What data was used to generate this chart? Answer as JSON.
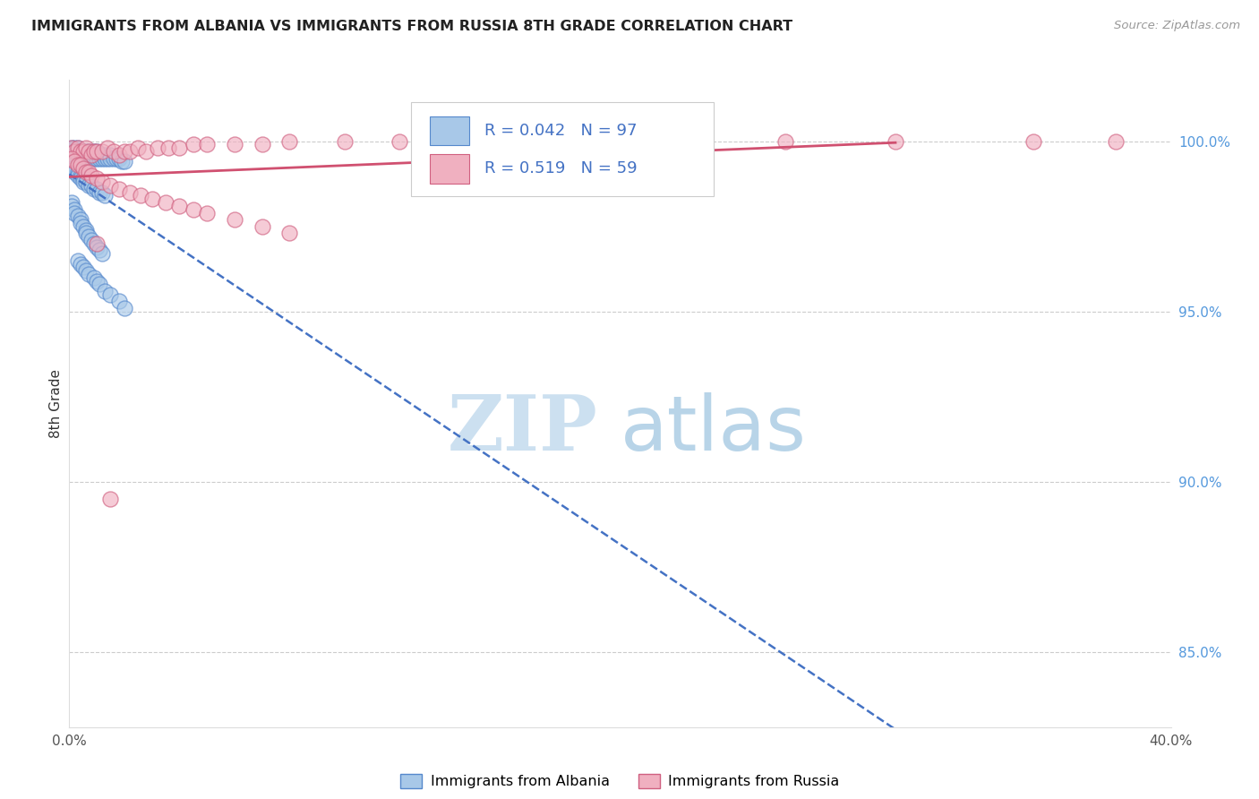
{
  "title": "IMMIGRANTS FROM ALBANIA VS IMMIGRANTS FROM RUSSIA 8TH GRADE CORRELATION CHART",
  "source": "Source: ZipAtlas.com",
  "ylabel": "8th Grade",
  "legend_albania": "Immigrants from Albania",
  "legend_russia": "Immigrants from Russia",
  "r_albania": 0.042,
  "n_albania": 97,
  "r_russia": 0.519,
  "n_russia": 59,
  "xlim": [
    0.0,
    0.4
  ],
  "ylim": [
    0.828,
    1.018
  ],
  "xtick_vals": [
    0.0,
    0.08,
    0.16,
    0.24,
    0.32,
    0.4
  ],
  "xtick_labels": [
    "0.0%",
    "",
    "",
    "",
    "",
    "40.0%"
  ],
  "ytick_vals": [
    0.85,
    0.9,
    0.95,
    1.0
  ],
  "ytick_labels": [
    "85.0%",
    "90.0%",
    "95.0%",
    "100.0%"
  ],
  "color_albania_fill": "#a8c8e8",
  "color_albania_edge": "#5588cc",
  "color_russia_fill": "#f0b0c0",
  "color_russia_edge": "#d06080",
  "color_albania_line": "#4472c4",
  "color_russia_line": "#d05070",
  "watermark_zip_color": "#cce0f0",
  "watermark_atlas_color": "#b8d4e8",
  "albania_x": [
    0.001,
    0.001,
    0.001,
    0.002,
    0.002,
    0.002,
    0.002,
    0.002,
    0.003,
    0.003,
    0.003,
    0.003,
    0.003,
    0.004,
    0.004,
    0.004,
    0.004,
    0.005,
    0.005,
    0.005,
    0.005,
    0.006,
    0.006,
    0.006,
    0.006,
    0.007,
    0.007,
    0.007,
    0.008,
    0.008,
    0.008,
    0.009,
    0.009,
    0.009,
    0.01,
    0.01,
    0.01,
    0.011,
    0.011,
    0.012,
    0.012,
    0.013,
    0.013,
    0.014,
    0.015,
    0.015,
    0.016,
    0.017,
    0.018,
    0.019,
    0.02,
    0.001,
    0.001,
    0.002,
    0.002,
    0.003,
    0.003,
    0.004,
    0.004,
    0.005,
    0.005,
    0.006,
    0.007,
    0.008,
    0.009,
    0.01,
    0.011,
    0.012,
    0.013,
    0.001,
    0.001,
    0.002,
    0.002,
    0.003,
    0.004,
    0.004,
    0.005,
    0.006,
    0.006,
    0.007,
    0.008,
    0.009,
    0.01,
    0.011,
    0.012,
    0.003,
    0.004,
    0.005,
    0.006,
    0.007,
    0.009,
    0.01,
    0.011,
    0.013,
    0.015,
    0.018,
    0.02
  ],
  "albania_y": [
    0.998,
    0.997,
    0.996,
    0.998,
    0.997,
    0.996,
    0.995,
    0.994,
    0.998,
    0.997,
    0.996,
    0.995,
    0.994,
    0.997,
    0.996,
    0.995,
    0.994,
    0.997,
    0.996,
    0.995,
    0.994,
    0.997,
    0.996,
    0.995,
    0.994,
    0.997,
    0.996,
    0.995,
    0.997,
    0.996,
    0.995,
    0.997,
    0.996,
    0.995,
    0.997,
    0.996,
    0.995,
    0.996,
    0.995,
    0.996,
    0.995,
    0.996,
    0.995,
    0.995,
    0.996,
    0.995,
    0.995,
    0.995,
    0.995,
    0.994,
    0.994,
    0.993,
    0.992,
    0.992,
    0.991,
    0.991,
    0.99,
    0.99,
    0.989,
    0.989,
    0.988,
    0.988,
    0.987,
    0.987,
    0.986,
    0.986,
    0.985,
    0.985,
    0.984,
    0.982,
    0.981,
    0.98,
    0.979,
    0.978,
    0.977,
    0.976,
    0.975,
    0.974,
    0.973,
    0.972,
    0.971,
    0.97,
    0.969,
    0.968,
    0.967,
    0.965,
    0.964,
    0.963,
    0.962,
    0.961,
    0.96,
    0.959,
    0.958,
    0.956,
    0.955,
    0.953,
    0.951
  ],
  "russia_x": [
    0.001,
    0.002,
    0.003,
    0.004,
    0.005,
    0.006,
    0.007,
    0.008,
    0.009,
    0.01,
    0.012,
    0.014,
    0.016,
    0.018,
    0.02,
    0.022,
    0.025,
    0.028,
    0.032,
    0.036,
    0.04,
    0.045,
    0.05,
    0.06,
    0.07,
    0.08,
    0.1,
    0.12,
    0.15,
    0.18,
    0.22,
    0.26,
    0.3,
    0.35,
    0.38,
    0.001,
    0.002,
    0.003,
    0.004,
    0.005,
    0.006,
    0.007,
    0.008,
    0.01,
    0.012,
    0.015,
    0.018,
    0.022,
    0.026,
    0.03,
    0.035,
    0.04,
    0.045,
    0.05,
    0.06,
    0.07,
    0.08,
    0.01,
    0.015
  ],
  "russia_y": [
    0.998,
    0.997,
    0.998,
    0.997,
    0.997,
    0.998,
    0.997,
    0.996,
    0.997,
    0.997,
    0.997,
    0.998,
    0.997,
    0.996,
    0.997,
    0.997,
    0.998,
    0.997,
    0.998,
    0.998,
    0.998,
    0.999,
    0.999,
    0.999,
    0.999,
    1.0,
    1.0,
    1.0,
    1.0,
    1.0,
    1.0,
    1.0,
    1.0,
    1.0,
    1.0,
    0.995,
    0.994,
    0.993,
    0.993,
    0.992,
    0.991,
    0.991,
    0.99,
    0.989,
    0.988,
    0.987,
    0.986,
    0.985,
    0.984,
    0.983,
    0.982,
    0.981,
    0.98,
    0.979,
    0.977,
    0.975,
    0.973,
    0.97,
    0.895
  ]
}
